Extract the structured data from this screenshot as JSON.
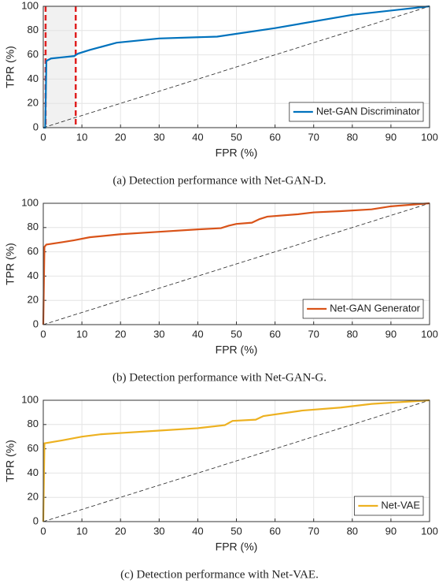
{
  "chart_data": [
    {
      "type": "line",
      "caption": "(a) Detection performance with Net-GAN-D.",
      "xlabel": "FPR (%)",
      "ylabel": "TPR (%)",
      "x": [
        0,
        0.5,
        0.8,
        2,
        5,
        8,
        9,
        12,
        19,
        30,
        45,
        60,
        80,
        100
      ],
      "series": [
        {
          "name": "Net-GAN Discriminator",
          "color": "#0072bd",
          "values": [
            0,
            0,
            55,
            57,
            58,
            59,
            61,
            64,
            70,
            73.5,
            75,
            82,
            93,
            100
          ]
        }
      ],
      "highlight_x": [
        0.6,
        8.4
      ],
      "xlim": [
        0,
        100
      ],
      "xticks": [
        0,
        10,
        20,
        30,
        40,
        50,
        60,
        70,
        80,
        90,
        100
      ],
      "ylim": [
        0,
        100
      ],
      "yticks": [
        0,
        20,
        40,
        60,
        80,
        100
      ],
      "grid": true,
      "legend": "lower right"
    },
    {
      "type": "line",
      "caption": "(b) Detection performance with Net-GAN-G.",
      "xlabel": "FPR (%)",
      "ylabel": "TPR (%)",
      "x": [
        0,
        0.3,
        0.8,
        5,
        8,
        12,
        20,
        30,
        40,
        46,
        48,
        50,
        54,
        56,
        58,
        66,
        70,
        77,
        85,
        90,
        100
      ],
      "series": [
        {
          "name": "Net-GAN Generator",
          "color": "#d95319",
          "values": [
            0,
            64,
            66,
            68,
            69.5,
            72,
            74.5,
            76.5,
            78.5,
            79.5,
            81.5,
            83,
            84,
            87,
            89,
            91,
            92.5,
            93.5,
            95,
            97.5,
            100
          ]
        }
      ],
      "xlim": [
        0,
        100
      ],
      "xticks": [
        0,
        10,
        20,
        30,
        40,
        50,
        60,
        70,
        80,
        90,
        100
      ],
      "ylim": [
        0,
        100
      ],
      "yticks": [
        0,
        20,
        40,
        60,
        80,
        100
      ],
      "grid": true,
      "legend": "lower right"
    },
    {
      "type": "line",
      "caption": "(c) Detection performance with Net-VAE.",
      "xlabel": "FPR (%)",
      "ylabel": "TPR (%)",
      "x": [
        0,
        0.3,
        5,
        10,
        15,
        20,
        30,
        40,
        47,
        49,
        55,
        57,
        67,
        77,
        85,
        100
      ],
      "series": [
        {
          "name": "Net-VAE",
          "color": "#edb120",
          "values": [
            0,
            64.5,
            67,
            70,
            72,
            73,
            75,
            77,
            79.5,
            83,
            84,
            87,
            91.5,
            94,
            97,
            100
          ]
        }
      ],
      "xlim": [
        0,
        100
      ],
      "xticks": [
        0,
        10,
        20,
        30,
        40,
        50,
        60,
        70,
        80,
        90,
        100
      ],
      "ylim": [
        0,
        100
      ],
      "yticks": [
        0,
        20,
        40,
        60,
        80,
        100
      ],
      "grid": true,
      "legend": "lower right"
    }
  ]
}
